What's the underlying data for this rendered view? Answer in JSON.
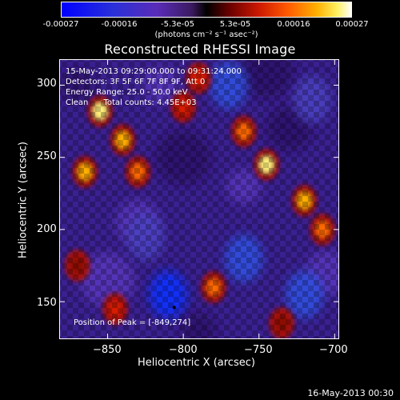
{
  "colorbar": {
    "tick_labels": [
      "-0.00027",
      "-0.00016",
      "-5.3e-05",
      "5.3e-05",
      "0.00016",
      "0.00027"
    ],
    "units": "(photons cm⁻² s⁻¹ asec⁻²)",
    "range": [
      -0.00027,
      0.00027
    ]
  },
  "chart_data": {
    "type": "heatmap",
    "title": "Reconstructed RHESSI Image",
    "xlabel": "Heliocentric X (arcsec)",
    "ylabel": "Heliocentric Y (arcsec)",
    "xlim": [
      -882,
      -697
    ],
    "ylim": [
      124,
      318
    ],
    "x_ticks": [
      -850,
      -800,
      -750,
      -700
    ],
    "y_ticks": [
      150,
      200,
      250,
      300
    ],
    "x_tick_labels": [
      "−850",
      "−800",
      "−750",
      "−700"
    ],
    "y_tick_labels": [
      "150",
      "200",
      "250",
      "300"
    ],
    "peak": [
      -849,
      274
    ],
    "emission_regions": [
      {
        "x": -855,
        "y": 282,
        "value": 0.00024
      },
      {
        "x": -840,
        "y": 262,
        "value": 0.00022
      },
      {
        "x": -865,
        "y": 240,
        "value": 0.0002
      },
      {
        "x": -830,
        "y": 240,
        "value": 0.00018
      },
      {
        "x": -800,
        "y": 285,
        "value": 0.00012
      },
      {
        "x": -760,
        "y": 268,
        "value": 0.00018
      },
      {
        "x": -745,
        "y": 245,
        "value": 0.00024
      },
      {
        "x": -720,
        "y": 220,
        "value": 0.00022
      },
      {
        "x": -708,
        "y": 200,
        "value": 0.00016
      },
      {
        "x": -780,
        "y": 160,
        "value": 0.00014
      },
      {
        "x": -845,
        "y": 145,
        "value": 0.0001
      },
      {
        "x": -870,
        "y": 175,
        "value": 8e-05
      },
      {
        "x": -735,
        "y": 135,
        "value": 8e-05
      },
      {
        "x": -790,
        "y": 305,
        "value": 9e-05
      }
    ],
    "negative_regions": [
      {
        "x": -810,
        "y": 155,
        "value": -0.00018
      },
      {
        "x": -760,
        "y": 180,
        "value": -0.00014
      },
      {
        "x": -715,
        "y": 290,
        "value": -0.0001
      },
      {
        "x": -770,
        "y": 300,
        "value": -0.00012
      },
      {
        "x": -720,
        "y": 155,
        "value": -0.00012
      },
      {
        "x": -825,
        "y": 195,
        "value": -6e-05
      }
    ],
    "info_lines": [
      "15-May-2013 09:29:00.000 to 09:31:24.000",
      "Detectors: 3F 5F 6F 7F 8F 9F, Att 0",
      "Energy Range: 25.0 - 50.0 keV",
      "Clean      Total counts: 4.45E+03"
    ],
    "peak_text": "Position of Peak = [-849,274]"
  },
  "footer": {
    "timestamp": "16-May-2013 00:30"
  }
}
